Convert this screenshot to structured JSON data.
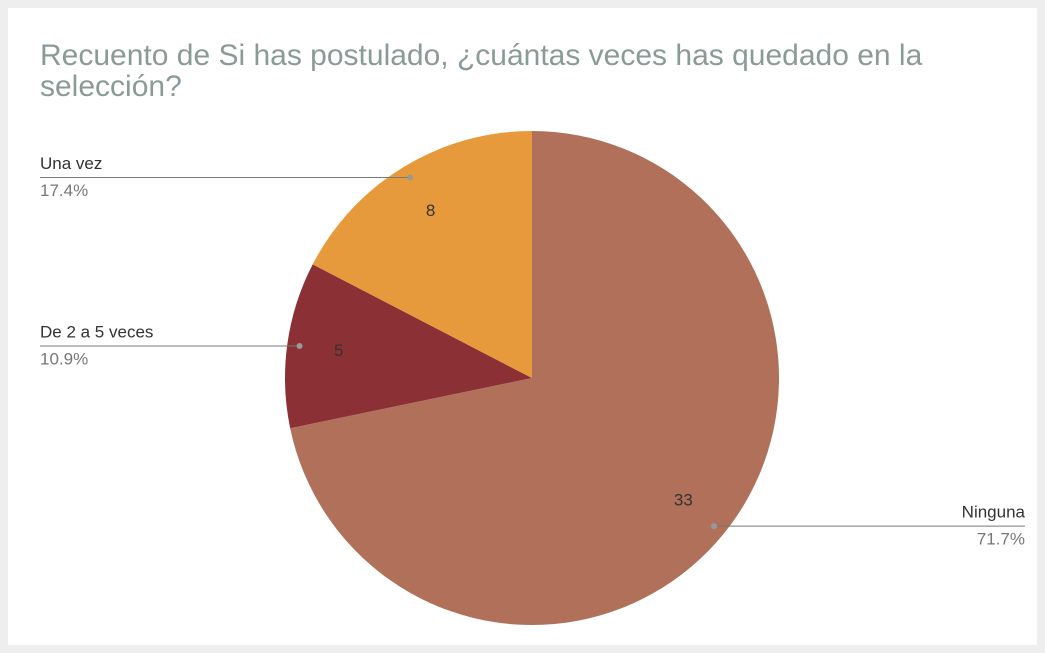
{
  "chart_data": {
    "type": "pie",
    "title": "Recuento de Si has postulado, ¿cuántas veces has quedado en la selección?",
    "categories": [
      "Ninguna",
      "De 2 a 5 veces",
      "Una vez"
    ],
    "values": [
      33,
      5,
      8
    ],
    "percent_labels": [
      "71.7%",
      "10.9%",
      "17.4%"
    ],
    "colors": [
      "#b0705a",
      "#8b3035",
      "#e69a3c"
    ]
  }
}
